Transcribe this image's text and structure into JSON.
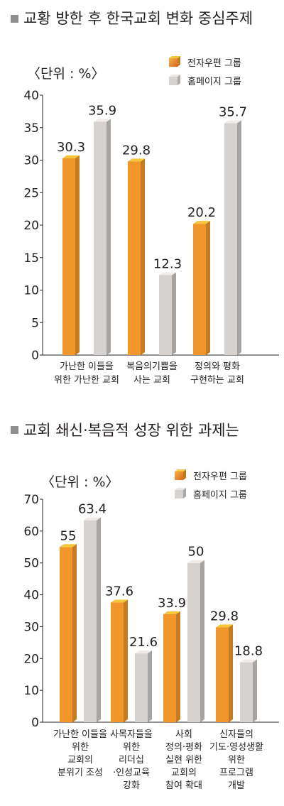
{
  "chart_data": [
    {
      "type": "bar",
      "title": "교황 방한 후 한국교회 변화 중심주제",
      "unit_label": "〈단위 : %〉",
      "ylim": [
        0,
        40
      ],
      "yticks": [
        0,
        5,
        10,
        15,
        20,
        25,
        30,
        35,
        40
      ],
      "categories": [
        [
          "가난한 이들을",
          "위한 가난한 교회"
        ],
        [
          "복음의기쁨을",
          "사는 교회"
        ],
        [
          "정의와 평화",
          "구현하는 교회"
        ]
      ],
      "series": [
        {
          "name": "전자우편 그룹",
          "color": "#f0962a",
          "values": [
            30.3,
            29.8,
            20.2
          ]
        },
        {
          "name": "홈페이지 그룹",
          "color": "#d6d2cf",
          "values": [
            35.9,
            12.3,
            35.7
          ]
        }
      ],
      "value_labels": [
        [
          "30.3",
          "29.8",
          "20.2"
        ],
        [
          "35.9",
          "12.3",
          "35.7"
        ]
      ],
      "legend": "top-right",
      "grid": false
    },
    {
      "type": "bar",
      "title": "교회 쇄신·복음적 성장 위한 과제는",
      "unit_label": "〈단위 : %〉",
      "ylim": [
        0,
        70
      ],
      "yticks": [
        0,
        10,
        20,
        30,
        40,
        50,
        60,
        70
      ],
      "categories": [
        [
          "가난한 이들을",
          "위한",
          "교회의",
          "분위기 조성"
        ],
        [
          "사목자들을",
          "위한",
          "리더십",
          "·인성교육",
          "강화"
        ],
        [
          "사회",
          "정의·평화",
          "실현 위한",
          "교회의",
          "참여 확대"
        ],
        [
          "신자들의",
          "기도·영성생활",
          "위한",
          "프로그램",
          "개발"
        ]
      ],
      "series": [
        {
          "name": "전자우편 그룹",
          "color": "#f0962a",
          "values": [
            55,
            37.6,
            33.9,
            29.8
          ]
        },
        {
          "name": "홈페이지 그룹",
          "color": "#d6d2cf",
          "values": [
            63.4,
            21.6,
            50,
            18.8
          ]
        }
      ],
      "value_labels": [
        [
          "55",
          "37.6",
          "33.9",
          "29.8"
        ],
        [
          "63.4",
          "21.6",
          "50",
          "18.8"
        ]
      ],
      "legend": "top-right",
      "grid": false
    }
  ]
}
